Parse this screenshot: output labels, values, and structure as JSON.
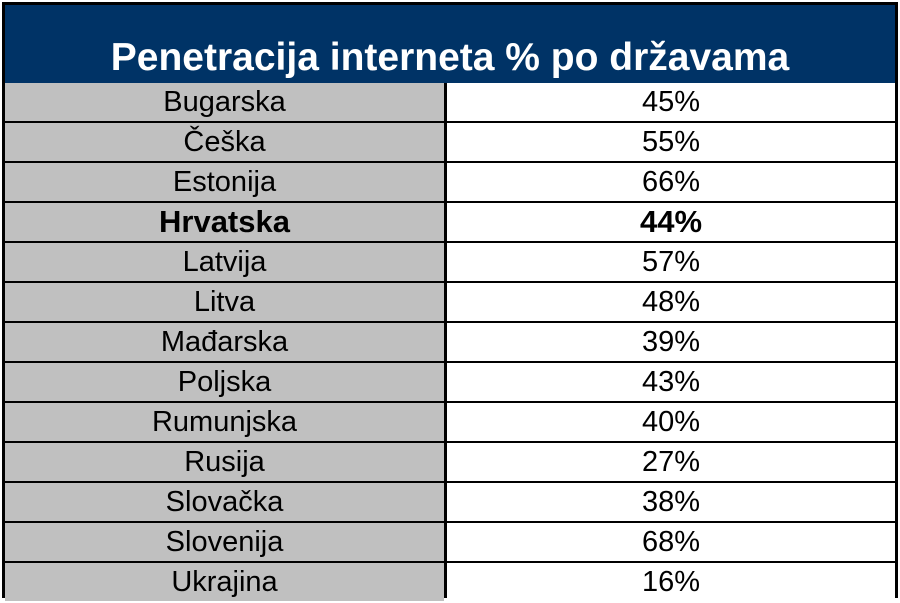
{
  "colors": {
    "header_bg": "#003366",
    "country_bg": "#c0c0c0",
    "value_bg": "#ffffff",
    "grid": "#000000"
  },
  "chart_data": {
    "type": "table",
    "title": "Penetracija interneta % po državama",
    "columns": [
      "",
      ""
    ],
    "highlighted_row": "Hrvatska",
    "rows": [
      {
        "country": "Bugarska",
        "value": "45%",
        "percent": 45
      },
      {
        "country": "Češka",
        "value": "55%",
        "percent": 55
      },
      {
        "country": "Estonija",
        "value": "66%",
        "percent": 66
      },
      {
        "country": "Hrvatska",
        "value": "44%",
        "percent": 44
      },
      {
        "country": "Latvija",
        "value": "57%",
        "percent": 57
      },
      {
        "country": "Litva",
        "value": "48%",
        "percent": 48
      },
      {
        "country": "Mađarska",
        "value": "39%",
        "percent": 39
      },
      {
        "country": "Poljska",
        "value": "43%",
        "percent": 43
      },
      {
        "country": "Rumunjska",
        "value": "40%",
        "percent": 40
      },
      {
        "country": "Rusija",
        "value": "27%",
        "percent": 27
      },
      {
        "country": "Slovačka",
        "value": "38%",
        "percent": 38
      },
      {
        "country": "Slovenija",
        "value": "68%",
        "percent": 68
      },
      {
        "country": "Ukrajina",
        "value": "16%",
        "percent": 16
      }
    ]
  }
}
